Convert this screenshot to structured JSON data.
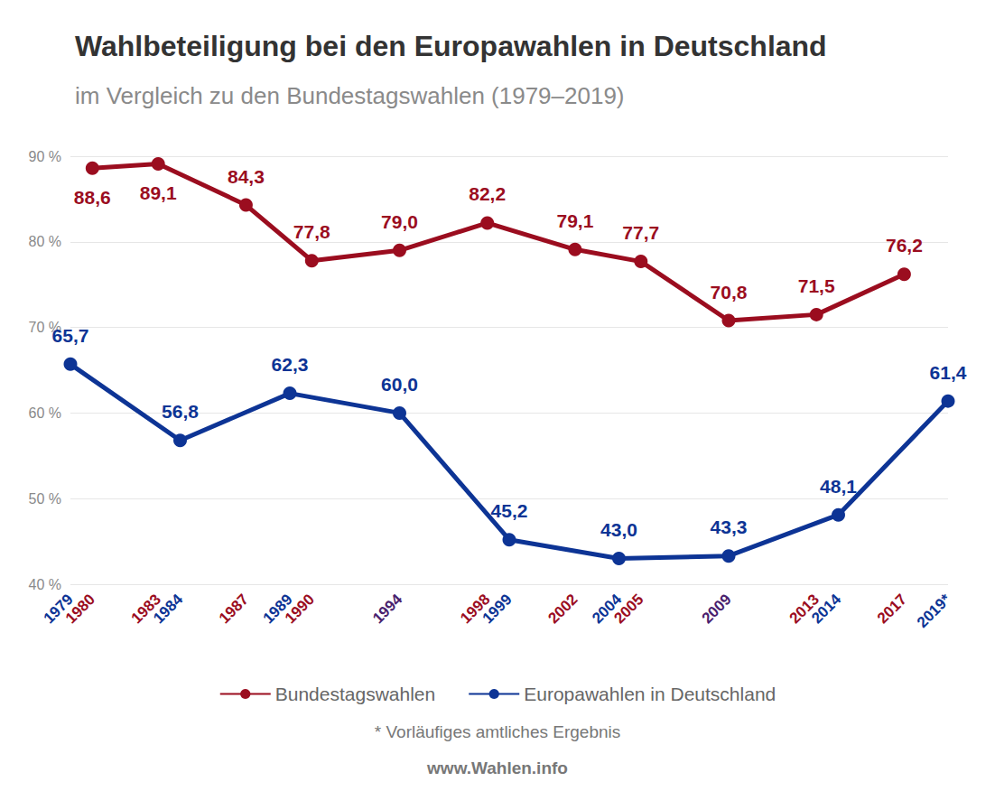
{
  "chart_data": {
    "type": "line",
    "title": "Wahlbeteiligung bei den Europawahlen in Deutschland",
    "subtitle": "im Vergleich zu den Bundestagswahlen (1979–2019)",
    "note": "* Vorläufiges amtliches Ergebnis",
    "source": "www.Wahlen.info",
    "xlim": [
      1979,
      2019
    ],
    "xticks": [
      1979,
      1980,
      1983,
      1984,
      1987,
      1989,
      1990,
      1994,
      1998,
      1999,
      2002,
      2004,
      2005,
      2009,
      2013,
      2014,
      2017,
      {
        "value": 2019,
        "label": "2019*"
      }
    ],
    "ylim": [
      40,
      90
    ],
    "yticks": [
      {
        "value": 40,
        "label": "40 %"
      },
      {
        "value": 50,
        "label": "50 %"
      },
      {
        "value": 60,
        "label": "60 %"
      },
      {
        "value": 70,
        "label": "70 %"
      },
      {
        "value": 80,
        "label": "80 %"
      },
      {
        "value": 90,
        "label": "90 %"
      }
    ],
    "grid": true,
    "legend": "bottom",
    "data_labels": true,
    "series": [
      {
        "name": "Bundestagswahlen",
        "color": "#9b0d1f",
        "marker": "circle",
        "x": [
          1980,
          1983,
          1987,
          1990,
          1994,
          1998,
          2002,
          2005,
          2009,
          2013,
          2017
        ],
        "values": [
          88.6,
          89.1,
          84.3,
          77.8,
          79.0,
          82.2,
          79.1,
          77.7,
          70.8,
          71.5,
          76.2
        ],
        "value_labels": [
          "88,6",
          "89,1",
          "84,3",
          "77,8",
          "79,0",
          "82,2",
          "79,1",
          "77,7",
          "70,8",
          "71,5",
          "76,2"
        ]
      },
      {
        "name": "Europawahlen in Deutschland",
        "color": "#0d3495",
        "marker": "circle",
        "x": [
          1979,
          1984,
          1989,
          1994,
          1999,
          2004,
          2009,
          2014,
          2019
        ],
        "values": [
          65.7,
          56.8,
          62.3,
          60.0,
          45.2,
          43.0,
          43.3,
          48.1,
          61.4
        ],
        "value_labels": [
          "65,7",
          "56,8",
          "62,3",
          "60,0",
          "45,2",
          "43,0",
          "43,3",
          "48,1",
          "61,4"
        ]
      }
    ]
  }
}
